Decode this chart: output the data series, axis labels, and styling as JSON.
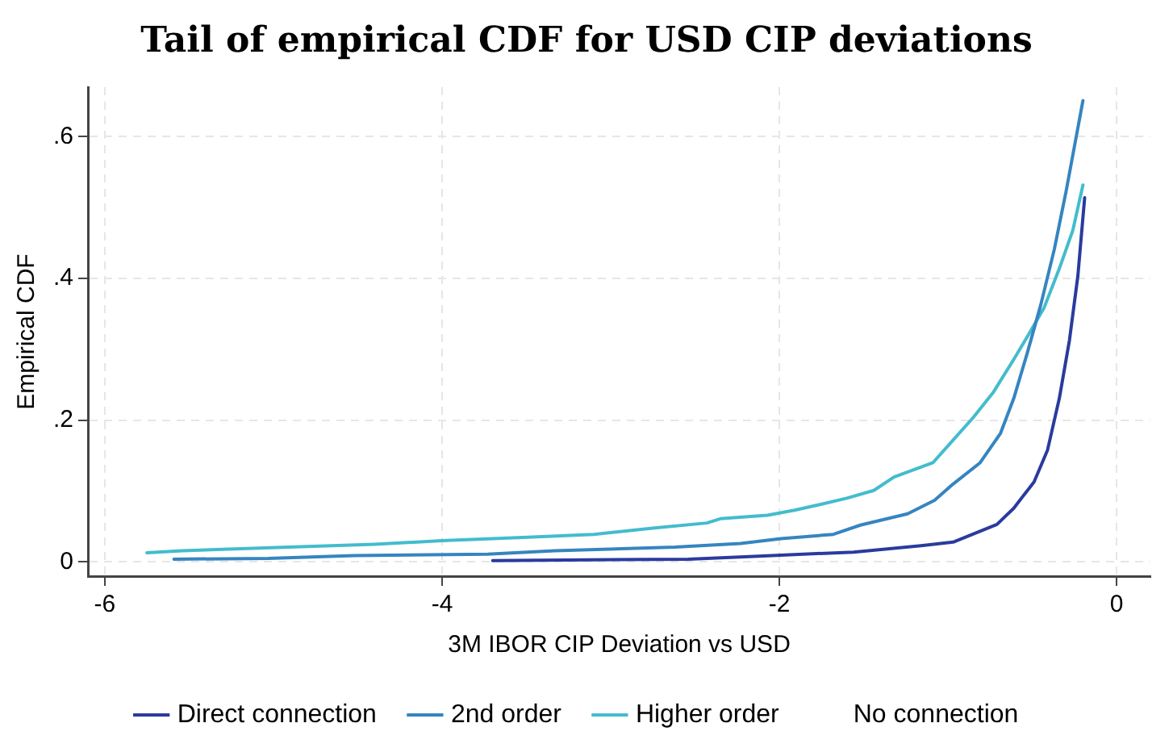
{
  "chart_data": {
    "type": "line",
    "title": "Tail of empirical CDF for USD CIP deviations",
    "xlabel": "3M IBOR CIP Deviation vs USD",
    "ylabel": "Empirical CDF",
    "xlim": [
      -6.1,
      0.2
    ],
    "xticks": [
      -6,
      -4,
      -2,
      0
    ],
    "ylim": [
      -0.02,
      0.67
    ],
    "yticks": [
      0,
      {
        "value": 0.2,
        "label": ".2"
      },
      {
        "value": 0.4,
        "label": ".4"
      },
      {
        "value": 0.6,
        "label": ".6"
      }
    ],
    "grid": true,
    "legend": "bottom",
    "marker": "none",
    "line_style": "solid",
    "series": [
      {
        "name": "Direct connection",
        "color": "#2a3b9e",
        "x": [
          -3.7,
          -2.54,
          -2.15,
          -1.56,
          -1.16,
          -0.97,
          -0.71,
          -0.61,
          -0.49,
          -0.41,
          -0.34,
          -0.28,
          -0.23,
          -0.19
        ],
        "values": [
          0.002,
          0.004,
          0.008,
          0.014,
          0.023,
          0.028,
          0.053,
          0.076,
          0.113,
          0.158,
          0.231,
          0.313,
          0.404,
          0.514
        ]
      },
      {
        "name": "2nd order",
        "color": "#3585c0",
        "x": [
          -5.59,
          -5.03,
          -4.52,
          -3.73,
          -3.33,
          -2.62,
          -2.23,
          -1.99,
          -1.68,
          -1.52,
          -1.24,
          -1.08,
          -0.97,
          -0.81,
          -0.69,
          -0.61,
          -0.53,
          -0.45,
          -0.37,
          -0.3,
          -0.2
        ],
        "values": [
          0.004,
          0.005,
          0.009,
          0.011,
          0.016,
          0.021,
          0.026,
          0.033,
          0.039,
          0.052,
          0.068,
          0.087,
          0.11,
          0.14,
          0.181,
          0.231,
          0.295,
          0.363,
          0.441,
          0.523,
          0.651
        ]
      },
      {
        "name": "Higher order",
        "color": "#43bccd",
        "x": [
          -5.75,
          -5.54,
          -4.91,
          -4.4,
          -4.0,
          -3.49,
          -3.1,
          -2.74,
          -2.43,
          -2.35,
          -2.07,
          -1.91,
          -1.76,
          -1.6,
          -1.44,
          -1.32,
          -1.09,
          -0.97,
          -0.85,
          -0.73,
          -0.61,
          -0.53,
          -0.43,
          -0.34,
          -0.26,
          -0.2
        ],
        "values": [
          0.013,
          0.016,
          0.021,
          0.025,
          0.03,
          0.035,
          0.039,
          0.048,
          0.055,
          0.061,
          0.066,
          0.073,
          0.081,
          0.09,
          0.101,
          0.12,
          0.14,
          0.172,
          0.204,
          0.24,
          0.286,
          0.318,
          0.359,
          0.414,
          0.468,
          0.532
        ]
      },
      {
        "name": "No connection"
      }
    ]
  }
}
